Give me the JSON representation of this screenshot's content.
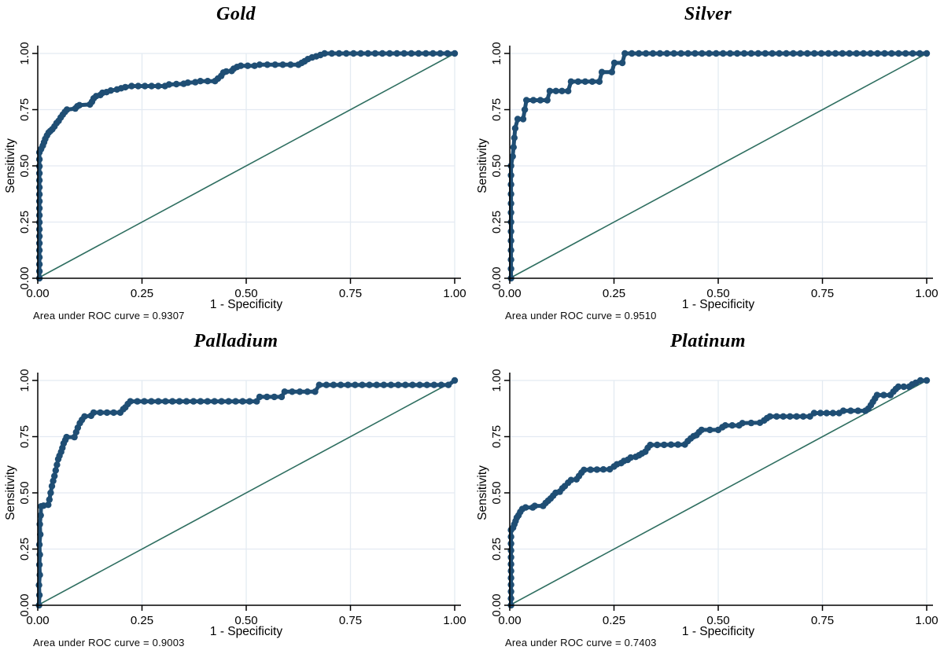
{
  "colors": {
    "curve": "#1f4e74",
    "reference_line": "#2e6e60",
    "grid": "#e3eaf2",
    "axis": "#000000",
    "background": "#ffffff"
  },
  "chart_data": [
    {
      "type": "line",
      "subtype": "roc-curve",
      "title": "Gold",
      "xlabel": "1 - Specificity",
      "ylabel": "Sensitivity",
      "xlim": [
        0,
        1
      ],
      "ylim": [
        0,
        1
      ],
      "grid": true,
      "legend": "none",
      "reference_diagonal": true,
      "auc": 0.9307,
      "auc_label": "Area under ROC curve = 0.9307",
      "xticks": [
        {
          "value": 0,
          "label": "0.00"
        },
        {
          "value": 0.25,
          "label": "0.25"
        },
        {
          "value": 0.5,
          "label": "0.50"
        },
        {
          "value": 0.75,
          "label": "0.75"
        },
        {
          "value": 1,
          "label": "1.00"
        }
      ],
      "yticks": [
        {
          "value": 0,
          "label": "0.00"
        },
        {
          "value": 0.25,
          "label": "0.25"
        },
        {
          "value": 0.5,
          "label": "0.50"
        },
        {
          "value": 0.75,
          "label": "0.75"
        },
        {
          "value": 1,
          "label": "1.00"
        }
      ],
      "roc_points": [
        [
          0.004,
          0
        ],
        [
          0.004,
          0.56
        ],
        [
          0.008,
          0.575
        ],
        [
          0.012,
          0.59
        ],
        [
          0.015,
          0.605
        ],
        [
          0.018,
          0.62
        ],
        [
          0.022,
          0.635
        ],
        [
          0.026,
          0.648
        ],
        [
          0.03,
          0.655
        ],
        [
          0.035,
          0.663
        ],
        [
          0.04,
          0.675
        ],
        [
          0.045,
          0.69
        ],
        [
          0.05,
          0.7
        ],
        [
          0.055,
          0.715
        ],
        [
          0.06,
          0.728
        ],
        [
          0.065,
          0.74
        ],
        [
          0.07,
          0.75
        ],
        [
          0.09,
          0.755
        ],
        [
          0.095,
          0.765
        ],
        [
          0.1,
          0.77
        ],
        [
          0.125,
          0.773
        ],
        [
          0.13,
          0.785
        ],
        [
          0.134,
          0.8
        ],
        [
          0.14,
          0.81
        ],
        [
          0.15,
          0.815
        ],
        [
          0.155,
          0.825
        ],
        [
          0.165,
          0.828
        ],
        [
          0.175,
          0.835
        ],
        [
          0.19,
          0.84
        ],
        [
          0.2,
          0.845
        ],
        [
          0.21,
          0.85
        ],
        [
          0.225,
          0.855
        ],
        [
          0.305,
          0.855
        ],
        [
          0.315,
          0.862
        ],
        [
          0.35,
          0.865
        ],
        [
          0.36,
          0.87
        ],
        [
          0.378,
          0.872
        ],
        [
          0.39,
          0.877
        ],
        [
          0.425,
          0.877
        ],
        [
          0.432,
          0.888
        ],
        [
          0.44,
          0.9
        ],
        [
          0.445,
          0.915
        ],
        [
          0.452,
          0.92
        ],
        [
          0.465,
          0.922
        ],
        [
          0.47,
          0.932
        ],
        [
          0.478,
          0.94
        ],
        [
          0.487,
          0.945
        ],
        [
          0.52,
          0.945
        ],
        [
          0.532,
          0.95
        ],
        [
          0.625,
          0.95
        ],
        [
          0.633,
          0.958
        ],
        [
          0.64,
          0.965
        ],
        [
          0.648,
          0.975
        ],
        [
          0.658,
          0.982
        ],
        [
          0.668,
          0.987
        ],
        [
          0.678,
          0.993
        ],
        [
          0.688,
          1
        ],
        [
          1,
          1
        ]
      ]
    },
    {
      "type": "line",
      "subtype": "roc-curve",
      "title": "Silver",
      "xlabel": "1 - Specificity",
      "ylabel": "Sensitivity",
      "xlim": [
        0,
        1
      ],
      "ylim": [
        0,
        1
      ],
      "grid": true,
      "legend": "none",
      "reference_diagonal": true,
      "auc": 0.951,
      "auc_label": "Area under ROC curve = 0.9510",
      "xticks": [
        {
          "value": 0,
          "label": "0.00"
        },
        {
          "value": 0.25,
          "label": "0.25"
        },
        {
          "value": 0.5,
          "label": "0.50"
        },
        {
          "value": 0.75,
          "label": "0.75"
        },
        {
          "value": 1,
          "label": "1.00"
        }
      ],
      "yticks": [
        {
          "value": 0,
          "label": "0.00"
        },
        {
          "value": 0.25,
          "label": "0.25"
        },
        {
          "value": 0.5,
          "label": "0.50"
        },
        {
          "value": 0.75,
          "label": "0.75"
        },
        {
          "value": 1,
          "label": "1.00"
        }
      ],
      "roc_points": [
        [
          0.003,
          0
        ],
        [
          0.003,
          0.042
        ],
        [
          0.003,
          0.083
        ],
        [
          0.003,
          0.125
        ],
        [
          0.003,
          0.167
        ],
        [
          0.003,
          0.208
        ],
        [
          0.003,
          0.25
        ],
        [
          0.003,
          0.292
        ],
        [
          0.003,
          0.333
        ],
        [
          0.003,
          0.375
        ],
        [
          0.003,
          0.417
        ],
        [
          0.003,
          0.458
        ],
        [
          0.003,
          0.5
        ],
        [
          0.007,
          0.542
        ],
        [
          0.009,
          0.583
        ],
        [
          0.011,
          0.625
        ],
        [
          0.013,
          0.667
        ],
        [
          0.019,
          0.708
        ],
        [
          0.032,
          0.708
        ],
        [
          0.036,
          0.75
        ],
        [
          0.04,
          0.792
        ],
        [
          0.09,
          0.792
        ],
        [
          0.096,
          0.833
        ],
        [
          0.14,
          0.833
        ],
        [
          0.147,
          0.875
        ],
        [
          0.215,
          0.875
        ],
        [
          0.221,
          0.917
        ],
        [
          0.245,
          0.917
        ],
        [
          0.251,
          0.958
        ],
        [
          0.27,
          0.958
        ],
        [
          0.276,
          1
        ],
        [
          1,
          1
        ]
      ]
    },
    {
      "type": "line",
      "subtype": "roc-curve",
      "title": "Palladium",
      "xlabel": "1 - Specificity",
      "ylabel": "Sensitivity",
      "xlim": [
        0,
        1
      ],
      "ylim": [
        0,
        1
      ],
      "grid": true,
      "legend": "none",
      "reference_diagonal": true,
      "auc": 0.9003,
      "auc_label": "Area under ROC curve = 0.9003",
      "xticks": [
        {
          "value": 0,
          "label": "0.00"
        },
        {
          "value": 0.25,
          "label": "0.25"
        },
        {
          "value": 0.5,
          "label": "0.50"
        },
        {
          "value": 0.75,
          "label": "0.75"
        },
        {
          "value": 1,
          "label": "1.00"
        }
      ],
      "yticks": [
        {
          "value": 0,
          "label": "0.00"
        },
        {
          "value": 0.25,
          "label": "0.25"
        },
        {
          "value": 0.5,
          "label": "0.50"
        },
        {
          "value": 0.75,
          "label": "0.75"
        },
        {
          "value": 1,
          "label": "1.00"
        }
      ],
      "roc_points": [
        [
          0.003,
          0
        ],
        [
          0.004,
          0.045
        ],
        [
          0.003,
          0.09
        ],
        [
          0.005,
          0.135
        ],
        [
          0.004,
          0.18
        ],
        [
          0.005,
          0.225
        ],
        [
          0.004,
          0.27
        ],
        [
          0.006,
          0.315
        ],
        [
          0.005,
          0.36
        ],
        [
          0.007,
          0.4
        ],
        [
          0.008,
          0.44
        ],
        [
          0.014,
          0.443
        ],
        [
          0.025,
          0.447
        ],
        [
          0.028,
          0.47
        ],
        [
          0.031,
          0.5
        ],
        [
          0.034,
          0.53
        ],
        [
          0.037,
          0.553
        ],
        [
          0.04,
          0.575
        ],
        [
          0.043,
          0.6
        ],
        [
          0.046,
          0.625
        ],
        [
          0.049,
          0.65
        ],
        [
          0.052,
          0.665
        ],
        [
          0.056,
          0.682
        ],
        [
          0.059,
          0.7
        ],
        [
          0.062,
          0.72
        ],
        [
          0.066,
          0.735
        ],
        [
          0.069,
          0.748
        ],
        [
          0.088,
          0.748
        ],
        [
          0.092,
          0.77
        ],
        [
          0.096,
          0.79
        ],
        [
          0.101,
          0.81
        ],
        [
          0.106,
          0.825
        ],
        [
          0.112,
          0.84
        ],
        [
          0.128,
          0.843
        ],
        [
          0.134,
          0.857
        ],
        [
          0.198,
          0.857
        ],
        [
          0.205,
          0.872
        ],
        [
          0.21,
          0.88
        ],
        [
          0.216,
          0.895
        ],
        [
          0.222,
          0.907
        ],
        [
          0.525,
          0.907
        ],
        [
          0.532,
          0.927
        ],
        [
          0.585,
          0.927
        ],
        [
          0.592,
          0.95
        ],
        [
          0.665,
          0.95
        ],
        [
          0.675,
          0.98
        ],
        [
          0.985,
          0.98
        ],
        [
          1,
          1
        ]
      ]
    },
    {
      "type": "line",
      "subtype": "roc-curve",
      "title": "Platinum",
      "xlabel": "1 - Specificity",
      "ylabel": "Sensitivity",
      "xlim": [
        0,
        1
      ],
      "ylim": [
        0,
        1
      ],
      "grid": true,
      "legend": "none",
      "reference_diagonal": true,
      "auc": 0.7403,
      "auc_label": "Area under ROC curve = 0.7403",
      "xticks": [
        {
          "value": 0,
          "label": "0.00"
        },
        {
          "value": 0.25,
          "label": "0.25"
        },
        {
          "value": 0.5,
          "label": "0.50"
        },
        {
          "value": 0.75,
          "label": "0.75"
        },
        {
          "value": 1,
          "label": "1.00"
        }
      ],
      "yticks": [
        {
          "value": 0,
          "label": "0.00"
        },
        {
          "value": 0.25,
          "label": "0.25"
        },
        {
          "value": 0.5,
          "label": "0.50"
        },
        {
          "value": 0.75,
          "label": "0.75"
        },
        {
          "value": 1,
          "label": "1.00"
        }
      ],
      "roc_points": [
        [
          0.003,
          0
        ],
        [
          0.003,
          0.335
        ],
        [
          0.008,
          0.345
        ],
        [
          0.011,
          0.36
        ],
        [
          0.014,
          0.375
        ],
        [
          0.017,
          0.39
        ],
        [
          0.021,
          0.4
        ],
        [
          0.025,
          0.415
        ],
        [
          0.03,
          0.428
        ],
        [
          0.038,
          0.435
        ],
        [
          0.055,
          0.435
        ],
        [
          0.06,
          0.442
        ],
        [
          0.08,
          0.442
        ],
        [
          0.086,
          0.455
        ],
        [
          0.092,
          0.465
        ],
        [
          0.098,
          0.475
        ],
        [
          0.104,
          0.487
        ],
        [
          0.11,
          0.5
        ],
        [
          0.12,
          0.505
        ],
        [
          0.126,
          0.52
        ],
        [
          0.132,
          0.53
        ],
        [
          0.14,
          0.545
        ],
        [
          0.147,
          0.557
        ],
        [
          0.16,
          0.56
        ],
        [
          0.166,
          0.575
        ],
        [
          0.172,
          0.59
        ],
        [
          0.178,
          0.602
        ],
        [
          0.24,
          0.605
        ],
        [
          0.25,
          0.617
        ],
        [
          0.257,
          0.627
        ],
        [
          0.267,
          0.632
        ],
        [
          0.274,
          0.642
        ],
        [
          0.283,
          0.647
        ],
        [
          0.29,
          0.657
        ],
        [
          0.302,
          0.66
        ],
        [
          0.31,
          0.667
        ],
        [
          0.317,
          0.675
        ],
        [
          0.325,
          0.683
        ],
        [
          0.331,
          0.7
        ],
        [
          0.337,
          0.713
        ],
        [
          0.42,
          0.715
        ],
        [
          0.427,
          0.73
        ],
        [
          0.434,
          0.742
        ],
        [
          0.441,
          0.752
        ],
        [
          0.448,
          0.757
        ],
        [
          0.454,
          0.77
        ],
        [
          0.46,
          0.78
        ],
        [
          0.5,
          0.78
        ],
        [
          0.51,
          0.792
        ],
        [
          0.517,
          0.8
        ],
        [
          0.55,
          0.8
        ],
        [
          0.558,
          0.81
        ],
        [
          0.6,
          0.812
        ],
        [
          0.61,
          0.822
        ],
        [
          0.617,
          0.832
        ],
        [
          0.624,
          0.84
        ],
        [
          0.72,
          0.84
        ],
        [
          0.73,
          0.855
        ],
        [
          0.79,
          0.855
        ],
        [
          0.8,
          0.865
        ],
        [
          0.853,
          0.865
        ],
        [
          0.86,
          0.875
        ],
        [
          0.866,
          0.89
        ],
        [
          0.871,
          0.905
        ],
        [
          0.876,
          0.92
        ],
        [
          0.881,
          0.935
        ],
        [
          0.913,
          0.935
        ],
        [
          0.92,
          0.95
        ],
        [
          0.926,
          0.962
        ],
        [
          0.932,
          0.972
        ],
        [
          0.958,
          0.972
        ],
        [
          0.965,
          0.982
        ],
        [
          0.974,
          0.99
        ],
        [
          0.985,
          1
        ],
        [
          1,
          1
        ]
      ]
    }
  ]
}
